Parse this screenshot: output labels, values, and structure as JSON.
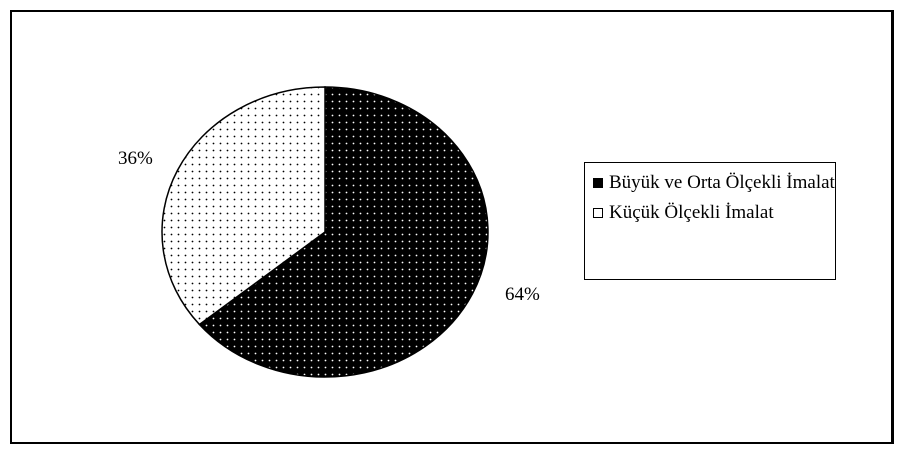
{
  "chart_data": {
    "type": "pie",
    "title": "",
    "slices": [
      {
        "label": "Büyük ve Orta Ölçekli İmalat",
        "value": 64,
        "value_label": "64%",
        "fill": "#000000",
        "dot": "#ffffff"
      },
      {
        "label": "Küçük Ölçekli İmalat",
        "value": 36,
        "value_label": "36%",
        "fill": "#ffffff",
        "dot": "#000000"
      }
    ],
    "legend": {
      "placement": "right",
      "entries": [
        "Büyük ve Orta Ölçekli İmalat",
        "Küçük Ölçekli İmalat"
      ]
    }
  }
}
